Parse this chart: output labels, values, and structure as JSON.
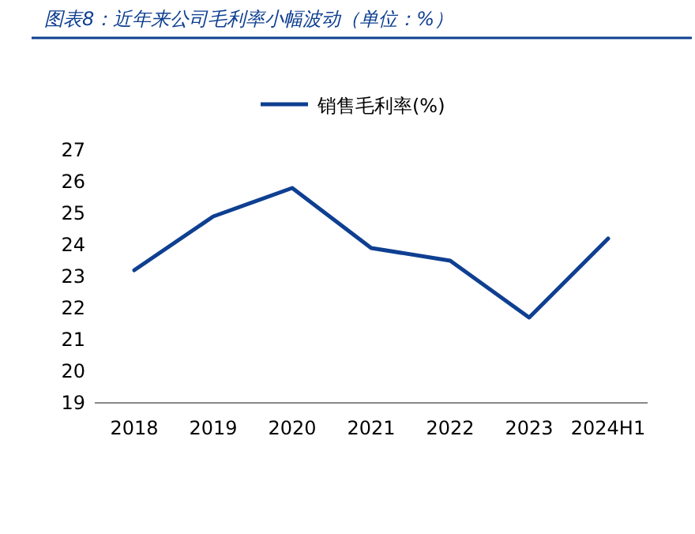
{
  "chart_data": {
    "type": "line",
    "title": "图表8：近年来公司毛利率小幅波动（单位：%）",
    "categories": [
      "2018",
      "2019",
      "2020",
      "2021",
      "2022",
      "2023",
      "2024H1"
    ],
    "series": [
      {
        "name": "销售毛利率(%)",
        "color": "#0e3f91",
        "values": [
          23.2,
          24.9,
          25.8,
          23.9,
          23.5,
          21.7,
          24.2
        ]
      }
    ],
    "ylim": [
      19,
      27
    ],
    "yticks": [
      19,
      20,
      21,
      22,
      23,
      24,
      25,
      26,
      27
    ],
    "grid": false,
    "legend": "top",
    "marker": "none",
    "line_style": "solid"
  }
}
